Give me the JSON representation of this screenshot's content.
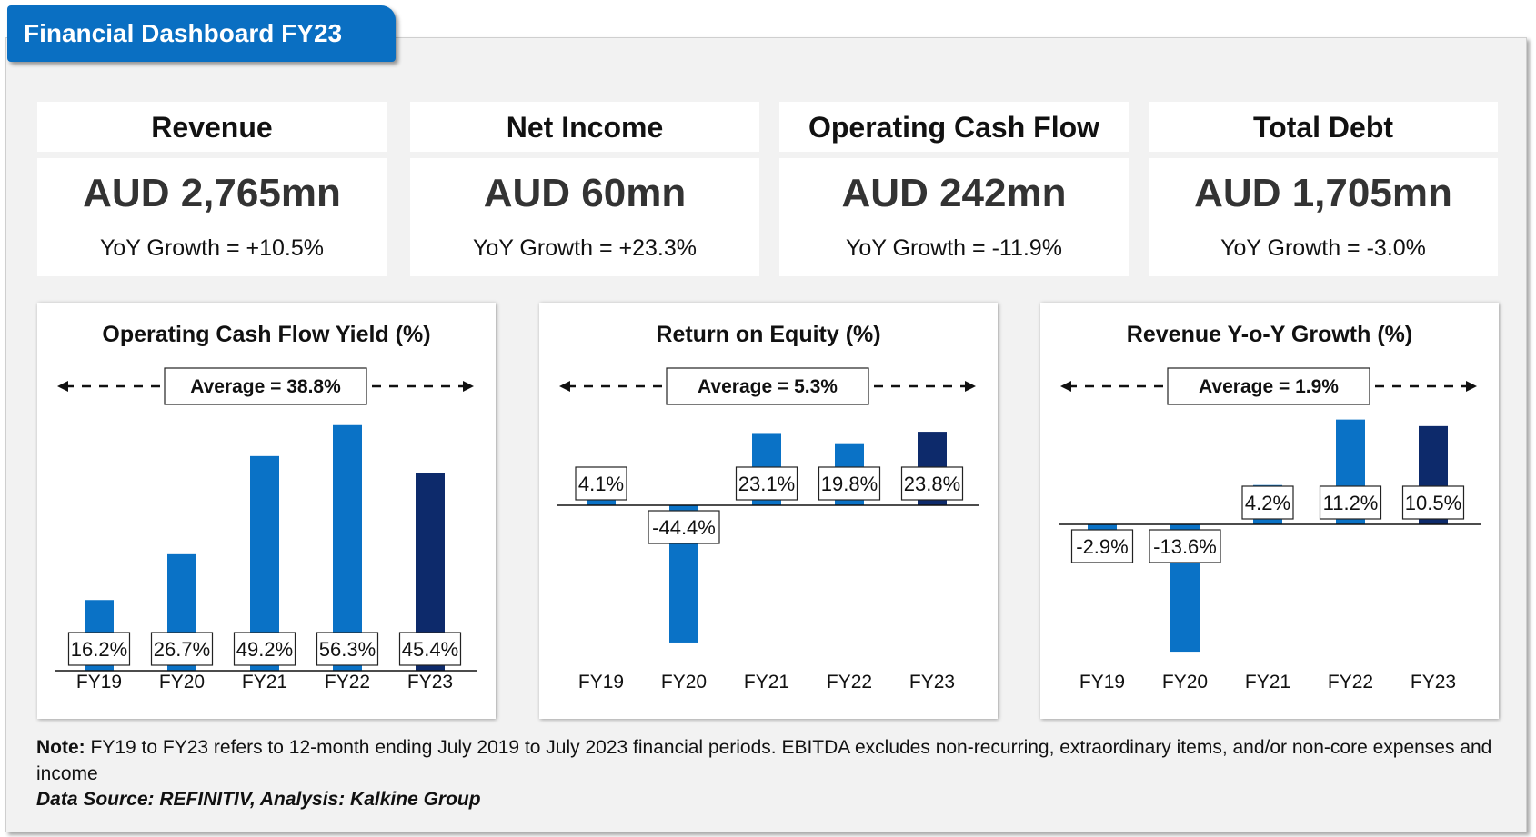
{
  "header": {
    "title": "Financial Dashboard FY23"
  },
  "colors": {
    "bar": "#0a72c6",
    "highlight": "#0d2a6b",
    "tab": "#0a6fc2"
  },
  "kpis": [
    {
      "label": "Revenue",
      "value": "AUD 2,765mn",
      "growth": "YoY Growth = +10.5%"
    },
    {
      "label": "Net Income",
      "value": "AUD 60mn",
      "growth": "YoY Growth = +23.3%"
    },
    {
      "label": "Operating Cash Flow",
      "value": "AUD 242mn",
      "growth": "YoY Growth = -11.9%"
    },
    {
      "label": "Total Debt",
      "value": "AUD 1,705mn",
      "growth": "YoY Growth = -3.0%"
    }
  ],
  "chart_data": [
    {
      "type": "bar",
      "title": "Operating Cash Flow Yield (%)",
      "categories": [
        "FY19",
        "FY20",
        "FY21",
        "FY22",
        "FY23"
      ],
      "values": [
        16.2,
        26.7,
        49.2,
        56.3,
        45.4
      ],
      "labels": [
        "16.2%",
        "26.7%",
        "49.2%",
        "56.3%",
        "45.4%"
      ],
      "average_label": "Average = 38.8%",
      "highlight_index": 4
    },
    {
      "type": "bar",
      "title": "Return on Equity (%)",
      "categories": [
        "FY19",
        "FY20",
        "FY21",
        "FY22",
        "FY23"
      ],
      "values": [
        4.1,
        -44.4,
        23.1,
        19.8,
        23.8
      ],
      "labels": [
        "4.1%",
        "-44.4%",
        "23.1%",
        "19.8%",
        "23.8%"
      ],
      "average_label": "Average = 5.3%",
      "highlight_index": 4
    },
    {
      "type": "bar",
      "title": "Revenue Y-o-Y Growth (%)",
      "categories": [
        "FY19",
        "FY20",
        "FY21",
        "FY22",
        "FY23"
      ],
      "values": [
        -2.9,
        -13.6,
        4.2,
        11.2,
        10.5
      ],
      "labels": [
        "-2.9%",
        "-13.6%",
        "4.2%",
        "11.2%",
        "10.5%"
      ],
      "average_label": "Average = 1.9%",
      "highlight_index": 4
    }
  ],
  "note": {
    "label": "Note:",
    "text": " FY19 to FY23 refers to 12-month ending July 2019 to July 2023 financial periods. EBITDA excludes non-recurring, extraordinary items, and/or non-core expenses and income",
    "source": "Data Source: REFINITIV, Analysis: Kalkine Group"
  }
}
